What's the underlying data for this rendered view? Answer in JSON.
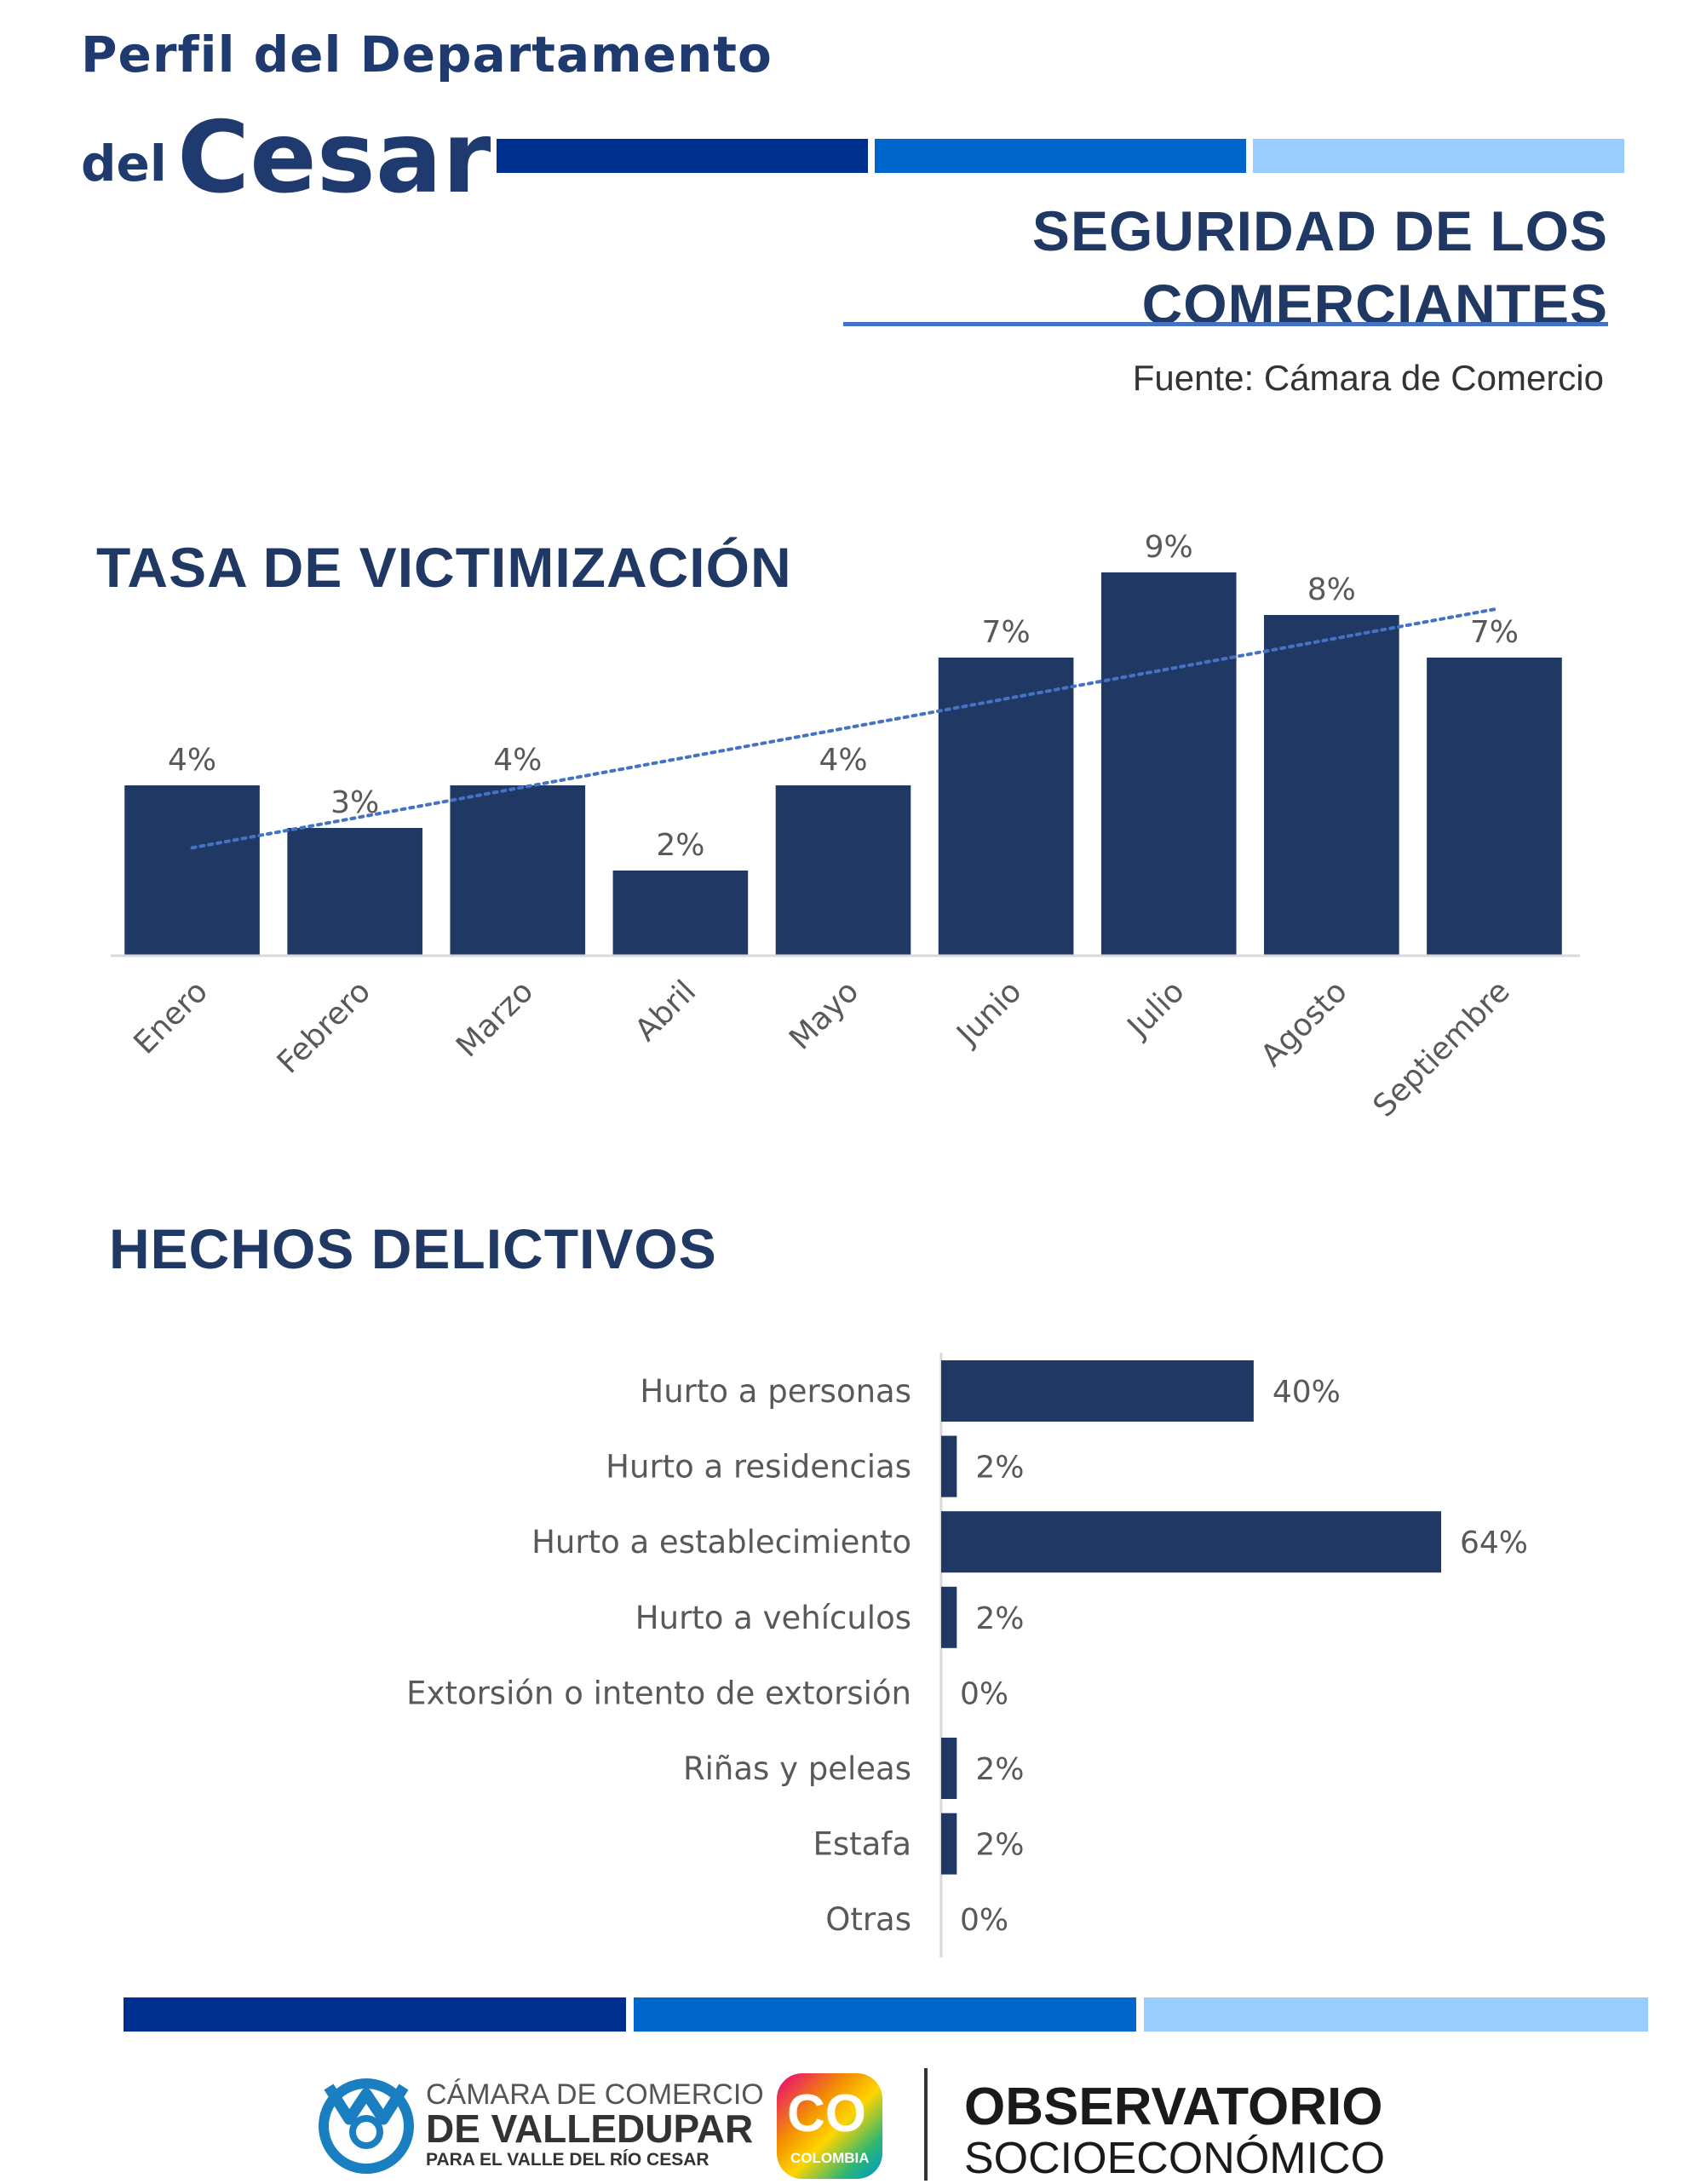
{
  "header": {
    "line1": "Perfil del Departamento",
    "line2_small": "del",
    "line2_big": "Cesar",
    "section_title_line1": "SEGURIDAD DE LOS",
    "section_title_line2": "COMERCIANTES",
    "source": "Fuente: Cámara de Comercio"
  },
  "colors": {
    "band_dark": "#00308f",
    "band_mid": "#0066cc",
    "band_light": "#99ccff",
    "bar": "#203864",
    "trend": "#4472c4",
    "label": "#595959"
  },
  "chart_data": [
    {
      "type": "bar",
      "title": "TASA DE VICTIMIZACIÓN",
      "categories": [
        "Enero",
        "Febrero",
        "Marzo",
        "Abril",
        "Mayo",
        "Junio",
        "Julio",
        "Agosto",
        "Septiembre"
      ],
      "values": [
        4,
        3,
        4,
        2,
        4,
        7,
        9,
        8,
        7
      ],
      "data_labels": [
        "4%",
        "3%",
        "4%",
        "2%",
        "4%",
        "7%",
        "9%",
        "8%",
        "7%"
      ],
      "trendline": "linear dotted",
      "grid": false,
      "legend": "none",
      "ylim": [
        0,
        9
      ]
    },
    {
      "type": "bar",
      "orientation": "horizontal",
      "title": "HECHOS DELICTIVOS",
      "categories": [
        "Hurto a personas",
        "Hurto a residencias",
        "Hurto a establecimiento",
        "Hurto a vehículos",
        "Extorsión o intento de extorsión",
        "Riñas y peleas",
        "Estafa",
        "Otras"
      ],
      "values": [
        40,
        2,
        64,
        2,
        0,
        2,
        2,
        0
      ],
      "data_labels": [
        "40%",
        "2%",
        "64%",
        "2%",
        "0%",
        "2%",
        "2%",
        "0%"
      ],
      "grid": false,
      "legend": "none",
      "xlim": [
        0,
        64
      ]
    }
  ],
  "footer": {
    "camara_line1": "CÁMARA DE COMERCIO",
    "camara_line2": "DE VALLEDUPAR",
    "camara_line3": "PARA EL VALLE DEL RÍO CESAR",
    "co_text": "CO",
    "colombia_text": "COLOMBIA",
    "obs_line1": "OBSERVATORIO",
    "obs_line2": "SOCIOECONÓMICO"
  }
}
